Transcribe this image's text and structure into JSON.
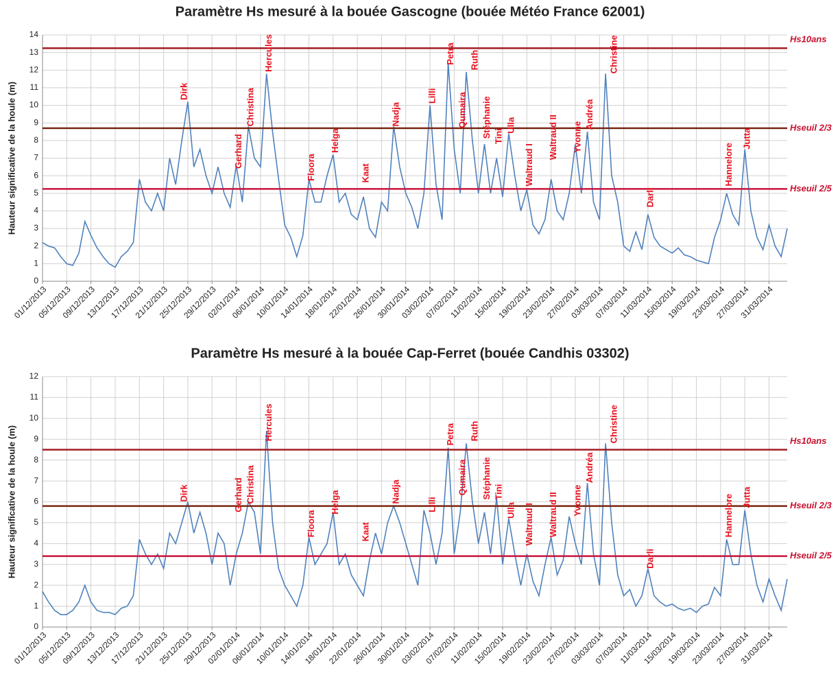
{
  "chart_data": [
    {
      "type": "line",
      "title": "Paramètre Hs mesuré à la bouée Gascogne  (bouée Météo France 62001)",
      "y_label": "Hauteur significative de la houle  (m)",
      "x": [
        "01/12/2013",
        "02/12/2013",
        "03/12/2013",
        "04/12/2013",
        "05/12/2013",
        "06/12/2013",
        "07/12/2013",
        "08/12/2013",
        "09/12/2013",
        "10/12/2013",
        "11/12/2013",
        "12/12/2013",
        "13/12/2013",
        "14/12/2013",
        "15/12/2013",
        "16/12/2013",
        "17/12/2013",
        "18/12/2013",
        "19/12/2013",
        "20/12/2013",
        "21/12/2013",
        "22/12/2013",
        "23/12/2013",
        "24/12/2013",
        "25/12/2013",
        "26/12/2013",
        "27/12/2013",
        "28/12/2013",
        "29/12/2013",
        "30/12/2013",
        "31/12/2013",
        "01/01/2014",
        "02/01/2014",
        "03/01/2014",
        "04/01/2014",
        "05/01/2014",
        "06/01/2014",
        "07/01/2014",
        "08/01/2014",
        "09/01/2014",
        "10/01/2014",
        "11/01/2014",
        "12/01/2014",
        "13/01/2014",
        "14/01/2014",
        "15/01/2014",
        "16/01/2014",
        "17/01/2014",
        "18/01/2014",
        "19/01/2014",
        "20/01/2014",
        "21/01/2014",
        "22/01/2014",
        "23/01/2014",
        "24/01/2014",
        "25/01/2014",
        "26/01/2014",
        "27/01/2014",
        "28/01/2014",
        "29/01/2014",
        "30/01/2014",
        "31/01/2014",
        "01/02/2014",
        "02/02/2014",
        "03/02/2014",
        "04/02/2014",
        "05/02/2014",
        "06/02/2014",
        "07/02/2014",
        "08/02/2014",
        "09/02/2014",
        "10/02/2014",
        "11/02/2014",
        "12/02/2014",
        "13/02/2014",
        "14/02/2014",
        "15/02/2014",
        "16/02/2014",
        "17/02/2014",
        "18/02/2014",
        "19/02/2014",
        "20/02/2014",
        "21/02/2014",
        "22/02/2014",
        "23/02/2014",
        "24/02/2014",
        "25/02/2014",
        "26/02/2014",
        "27/02/2014",
        "28/02/2014",
        "01/03/2014",
        "02/03/2014",
        "03/03/2014",
        "04/03/2014",
        "05/03/2014",
        "06/03/2014",
        "07/03/2014",
        "08/03/2014",
        "09/03/2014",
        "10/03/2014",
        "11/03/2014",
        "12/03/2014",
        "13/03/2014",
        "14/03/2014",
        "15/03/2014",
        "16/03/2014",
        "17/03/2014",
        "18/03/2014",
        "19/03/2014",
        "20/03/2014",
        "21/03/2014",
        "22/03/2014",
        "23/03/2014",
        "24/03/2014",
        "25/03/2014",
        "26/03/2014",
        "27/03/2014",
        "28/03/2014",
        "29/03/2014",
        "30/03/2014",
        "31/03/2014",
        "01/04/2014",
        "02/04/2014",
        "03/04/2014"
      ],
      "series": [
        {
          "color": "#4f81bd",
          "values": [
            2.2,
            2.0,
            1.9,
            1.4,
            1.0,
            0.9,
            1.6,
            3.4,
            2.6,
            1.9,
            1.4,
            1.0,
            0.8,
            1.4,
            1.7,
            2.2,
            5.8,
            4.5,
            4.0,
            5.0,
            4.0,
            7.0,
            5.5,
            8.0,
            10.2,
            6.5,
            7.5,
            6.0,
            5.0,
            6.5,
            5.0,
            4.2,
            6.6,
            4.5,
            8.8,
            7.0,
            6.5,
            11.8,
            8.5,
            5.8,
            3.2,
            2.5,
            1.4,
            2.6,
            5.8,
            4.5,
            4.5,
            6.0,
            7.2,
            4.5,
            5.0,
            3.8,
            3.5,
            4.8,
            3.0,
            2.5,
            4.5,
            4.0,
            8.8,
            6.5,
            5.0,
            4.2,
            3.0,
            5.0,
            10.0,
            5.5,
            3.5,
            12.4,
            7.5,
            5.0,
            11.9,
            8.0,
            5.0,
            7.8,
            5.0,
            7.0,
            4.8,
            8.4,
            6.0,
            4.0,
            5.2,
            3.2,
            2.7,
            3.5,
            5.8,
            4.0,
            3.5,
            5.0,
            7.8,
            5.0,
            8.5,
            4.5,
            3.5,
            11.8,
            6.0,
            4.5,
            2.0,
            1.7,
            2.8,
            1.8,
            3.8,
            2.5,
            2.0,
            1.8,
            1.6,
            1.9,
            1.5,
            1.4,
            1.2,
            1.1,
            1.0,
            2.5,
            3.5,
            5.0,
            3.8,
            3.2,
            7.5,
            4.0,
            2.5,
            1.8,
            3.2,
            2.0,
            1.4,
            3.0
          ]
        }
      ],
      "xticks": [
        "01/12/2013",
        "05/12/2013",
        "09/12/2013",
        "13/12/2013",
        "17/12/2013",
        "21/12/2013",
        "25/12/2013",
        "29/12/2013",
        "02/01/2014",
        "06/01/2014",
        "10/01/2014",
        "14/01/2014",
        "18/01/2014",
        "22/01/2014",
        "26/01/2014",
        "30/01/2014",
        "03/02/2014",
        "07/02/2014",
        "11/02/2014",
        "15/02/2014",
        "19/02/2014",
        "23/02/2014",
        "27/02/2014",
        "03/03/2014",
        "07/03/2014",
        "11/03/2014",
        "15/03/2014",
        "19/03/2014",
        "23/03/2014",
        "27/03/2014",
        "31/03/2014"
      ],
      "ylim": [
        0,
        14
      ],
      "yticks": [
        0,
        1,
        2,
        3,
        4,
        5,
        6,
        7,
        8,
        9,
        10,
        11,
        12,
        13,
        14
      ],
      "grid": true,
      "reference_lines": [
        {
          "label": "Hs10ans",
          "value": 13.25,
          "color": "#a31d24"
        },
        {
          "label": "Hseuil 2/3",
          "value": 8.7,
          "color": "#7a2712"
        },
        {
          "label": "Hseuil 2/5",
          "value": 5.25,
          "color": "#c8143c"
        }
      ],
      "annotations": [
        {
          "text": "Dirk",
          "x": "24/12/2013",
          "y": 10.3
        },
        {
          "text": "Gerhard",
          "x": "02/01/2014",
          "y": 6.4
        },
        {
          "text": "Christina",
          "x": "04/01/2014",
          "y": 8.8
        },
        {
          "text": "Hercules",
          "x": "07/01/2014",
          "y": 11.9
        },
        {
          "text": "Floora",
          "x": "14/01/2014",
          "y": 5.7
        },
        {
          "text": "Helga",
          "x": "18/01/2014",
          "y": 7.3
        },
        {
          "text": "Kaat",
          "x": "23/01/2014",
          "y": 5.6
        },
        {
          "text": "Nadja",
          "x": "28/01/2014",
          "y": 8.8
        },
        {
          "text": "Lilli",
          "x": "03/02/2014",
          "y": 10.1
        },
        {
          "text": "Petra",
          "x": "06/02/2014",
          "y": 12.3
        },
        {
          "text": "Qumaira",
          "x": "08/02/2014",
          "y": 8.7
        },
        {
          "text": "Ruth",
          "x": "10/02/2014",
          "y": 12.0
        },
        {
          "text": "Stéphanie",
          "x": "12/02/2014",
          "y": 8.1
        },
        {
          "text": "Tini",
          "x": "14/02/2014",
          "y": 7.8
        },
        {
          "text": "Ulla",
          "x": "16/02/2014",
          "y": 8.4
        },
        {
          "text": "Waltraud I",
          "x": "19/02/2014",
          "y": 5.4
        },
        {
          "text": "Waltraud II",
          "x": "23/02/2014",
          "y": 6.9
        },
        {
          "text": "Yvonne",
          "x": "27/02/2014",
          "y": 7.3
        },
        {
          "text": "Andréa",
          "x": "01/03/2014",
          "y": 8.6
        },
        {
          "text": "Christine",
          "x": "05/03/2014",
          "y": 11.8
        },
        {
          "text": "Darli",
          "x": "11/03/2014",
          "y": 4.2
        },
        {
          "text": "Hannelore",
          "x": "24/03/2014",
          "y": 5.4
        },
        {
          "text": "Jutta",
          "x": "27/03/2014",
          "y": 7.5
        }
      ]
    },
    {
      "type": "line",
      "title": "Paramètre Hs mesuré à la bouée Cap-Ferret (bouée Candhis 03302)",
      "y_label": "Hauteur significative de la houle  (m)",
      "x": [
        "01/12/2013",
        "02/12/2013",
        "03/12/2013",
        "04/12/2013",
        "05/12/2013",
        "06/12/2013",
        "07/12/2013",
        "08/12/2013",
        "09/12/2013",
        "10/12/2013",
        "11/12/2013",
        "12/12/2013",
        "13/12/2013",
        "14/12/2013",
        "15/12/2013",
        "16/12/2013",
        "17/12/2013",
        "18/12/2013",
        "19/12/2013",
        "20/12/2013",
        "21/12/2013",
        "22/12/2013",
        "23/12/2013",
        "24/12/2013",
        "25/12/2013",
        "26/12/2013",
        "27/12/2013",
        "28/12/2013",
        "29/12/2013",
        "30/12/2013",
        "31/12/2013",
        "01/01/2014",
        "02/01/2014",
        "03/01/2014",
        "04/01/2014",
        "05/01/2014",
        "06/01/2014",
        "07/01/2014",
        "08/01/2014",
        "09/01/2014",
        "10/01/2014",
        "11/01/2014",
        "12/01/2014",
        "13/01/2014",
        "14/01/2014",
        "15/01/2014",
        "16/01/2014",
        "17/01/2014",
        "18/01/2014",
        "19/01/2014",
        "20/01/2014",
        "21/01/2014",
        "22/01/2014",
        "23/01/2014",
        "24/01/2014",
        "25/01/2014",
        "26/01/2014",
        "27/01/2014",
        "28/01/2014",
        "29/01/2014",
        "30/01/2014",
        "31/01/2014",
        "01/02/2014",
        "02/02/2014",
        "03/02/2014",
        "04/02/2014",
        "05/02/2014",
        "06/02/2014",
        "07/02/2014",
        "08/02/2014",
        "09/02/2014",
        "10/02/2014",
        "11/02/2014",
        "12/02/2014",
        "13/02/2014",
        "14/02/2014",
        "15/02/2014",
        "16/02/2014",
        "17/02/2014",
        "18/02/2014",
        "19/02/2014",
        "20/02/2014",
        "21/02/2014",
        "22/02/2014",
        "23/02/2014",
        "24/02/2014",
        "25/02/2014",
        "26/02/2014",
        "27/02/2014",
        "28/02/2014",
        "01/03/2014",
        "02/03/2014",
        "03/03/2014",
        "04/03/2014",
        "05/03/2014",
        "06/03/2014",
        "07/03/2014",
        "08/03/2014",
        "09/03/2014",
        "10/03/2014",
        "11/03/2014",
        "12/03/2014",
        "13/03/2014",
        "14/03/2014",
        "15/03/2014",
        "16/03/2014",
        "17/03/2014",
        "18/03/2014",
        "19/03/2014",
        "20/03/2014",
        "21/03/2014",
        "22/03/2014",
        "23/03/2014",
        "24/03/2014",
        "25/03/2014",
        "26/03/2014",
        "27/03/2014",
        "28/03/2014",
        "29/03/2014",
        "30/03/2014",
        "31/03/2014",
        "01/04/2014",
        "02/04/2014",
        "03/04/2014"
      ],
      "series": [
        {
          "color": "#4f81bd",
          "values": [
            1.7,
            1.2,
            0.8,
            0.6,
            0.6,
            0.8,
            1.2,
            2.0,
            1.2,
            0.8,
            0.7,
            0.7,
            0.6,
            0.9,
            1.0,
            1.5,
            4.2,
            3.5,
            3.0,
            3.5,
            2.8,
            4.5,
            4.0,
            5.0,
            6.0,
            4.5,
            5.5,
            4.5,
            3.0,
            4.5,
            4.0,
            2.0,
            3.5,
            4.5,
            6.0,
            5.5,
            3.5,
            9.4,
            5.0,
            2.8,
            2.0,
            1.5,
            1.0,
            2.0,
            4.3,
            3.0,
            3.5,
            4.0,
            5.5,
            3.0,
            3.5,
            2.5,
            2.0,
            1.5,
            3.2,
            4.5,
            3.5,
            5.0,
            5.8,
            5.0,
            4.0,
            3.0,
            2.0,
            5.6,
            4.5,
            3.0,
            4.5,
            8.6,
            3.5,
            5.5,
            8.8,
            6.0,
            4.0,
            5.5,
            3.5,
            6.2,
            3.0,
            5.2,
            3.5,
            2.0,
            3.5,
            2.2,
            1.5,
            3.0,
            4.3,
            2.5,
            3.2,
            5.3,
            4.0,
            3.0,
            6.9,
            3.5,
            2.0,
            8.8,
            5.0,
            2.5,
            1.5,
            1.8,
            1.0,
            1.5,
            2.8,
            1.5,
            1.2,
            1.0,
            1.1,
            0.9,
            0.8,
            0.9,
            0.7,
            1.0,
            1.1,
            1.9,
            1.5,
            4.2,
            3.0,
            3.0,
            5.6,
            3.5,
            2.0,
            1.2,
            2.3,
            1.5,
            0.8,
            2.3
          ]
        }
      ],
      "xticks": [
        "01/12/2013",
        "05/12/2013",
        "09/12/2013",
        "13/12/2013",
        "17/12/2013",
        "21/12/2013",
        "25/12/2013",
        "29/12/2013",
        "02/01/2014",
        "06/01/2014",
        "10/01/2014",
        "14/01/2014",
        "18/01/2014",
        "22/01/2014",
        "26/01/2014",
        "30/01/2014",
        "03/02/2014",
        "07/02/2014",
        "11/02/2014",
        "15/02/2014",
        "19/02/2014",
        "23/02/2014",
        "27/02/2014",
        "03/03/2014",
        "07/03/2014",
        "11/03/2014",
        "15/03/2014",
        "19/03/2014",
        "23/03/2014",
        "27/03/2014",
        "31/03/2014"
      ],
      "ylim": [
        0,
        12
      ],
      "yticks": [
        0,
        1,
        2,
        3,
        4,
        5,
        6,
        7,
        8,
        9,
        10,
        11,
        12
      ],
      "grid": true,
      "reference_lines": [
        {
          "label": "Hs10ans",
          "value": 8.5,
          "color": "#a31d24"
        },
        {
          "label": "Hseuil 2/3",
          "value": 5.8,
          "color": "#7a2712"
        },
        {
          "label": "Hseuil 2/5",
          "value": 3.4,
          "color": "#c8143c"
        }
      ],
      "annotations": [
        {
          "text": "Dirk",
          "x": "24/12/2013",
          "y": 6.0
        },
        {
          "text": "Gerhard",
          "x": "02/01/2014",
          "y": 5.5
        },
        {
          "text": "Christina",
          "x": "04/01/2014",
          "y": 5.9
        },
        {
          "text": "Hercules",
          "x": "07/01/2014",
          "y": 8.9
        },
        {
          "text": "Floora",
          "x": "14/01/2014",
          "y": 4.3
        },
        {
          "text": "Helga",
          "x": "18/01/2014",
          "y": 5.4
        },
        {
          "text": "Kaat",
          "x": "23/01/2014",
          "y": 4.1
        },
        {
          "text": "Nadja",
          "x": "28/01/2014",
          "y": 5.9
        },
        {
          "text": "Lilli",
          "x": "03/02/2014",
          "y": 5.5
        },
        {
          "text": "Petra",
          "x": "06/02/2014",
          "y": 8.7
        },
        {
          "text": "Qumaira",
          "x": "08/02/2014",
          "y": 6.3
        },
        {
          "text": "Ruth",
          "x": "10/02/2014",
          "y": 8.9
        },
        {
          "text": "Stéphanie",
          "x": "12/02/2014",
          "y": 6.1
        },
        {
          "text": "Tini",
          "x": "14/02/2014",
          "y": 6.1
        },
        {
          "text": "Ulla",
          "x": "16/02/2014",
          "y": 5.2
        },
        {
          "text": "Waltraud I",
          "x": "19/02/2014",
          "y": 3.9
        },
        {
          "text": "Waltraud II",
          "x": "23/02/2014",
          "y": 4.3
        },
        {
          "text": "Yvonne",
          "x": "27/02/2014",
          "y": 5.3
        },
        {
          "text": "Andréa",
          "x": "01/03/2014",
          "y": 6.9
        },
        {
          "text": "Christine",
          "x": "05/03/2014",
          "y": 8.8
        },
        {
          "text": "Darli",
          "x": "11/03/2014",
          "y": 2.8
        },
        {
          "text": "Hannelore",
          "x": "24/03/2014",
          "y": 4.3
        },
        {
          "text": "Jutta",
          "x": "27/03/2014",
          "y": 5.7
        }
      ]
    }
  ]
}
